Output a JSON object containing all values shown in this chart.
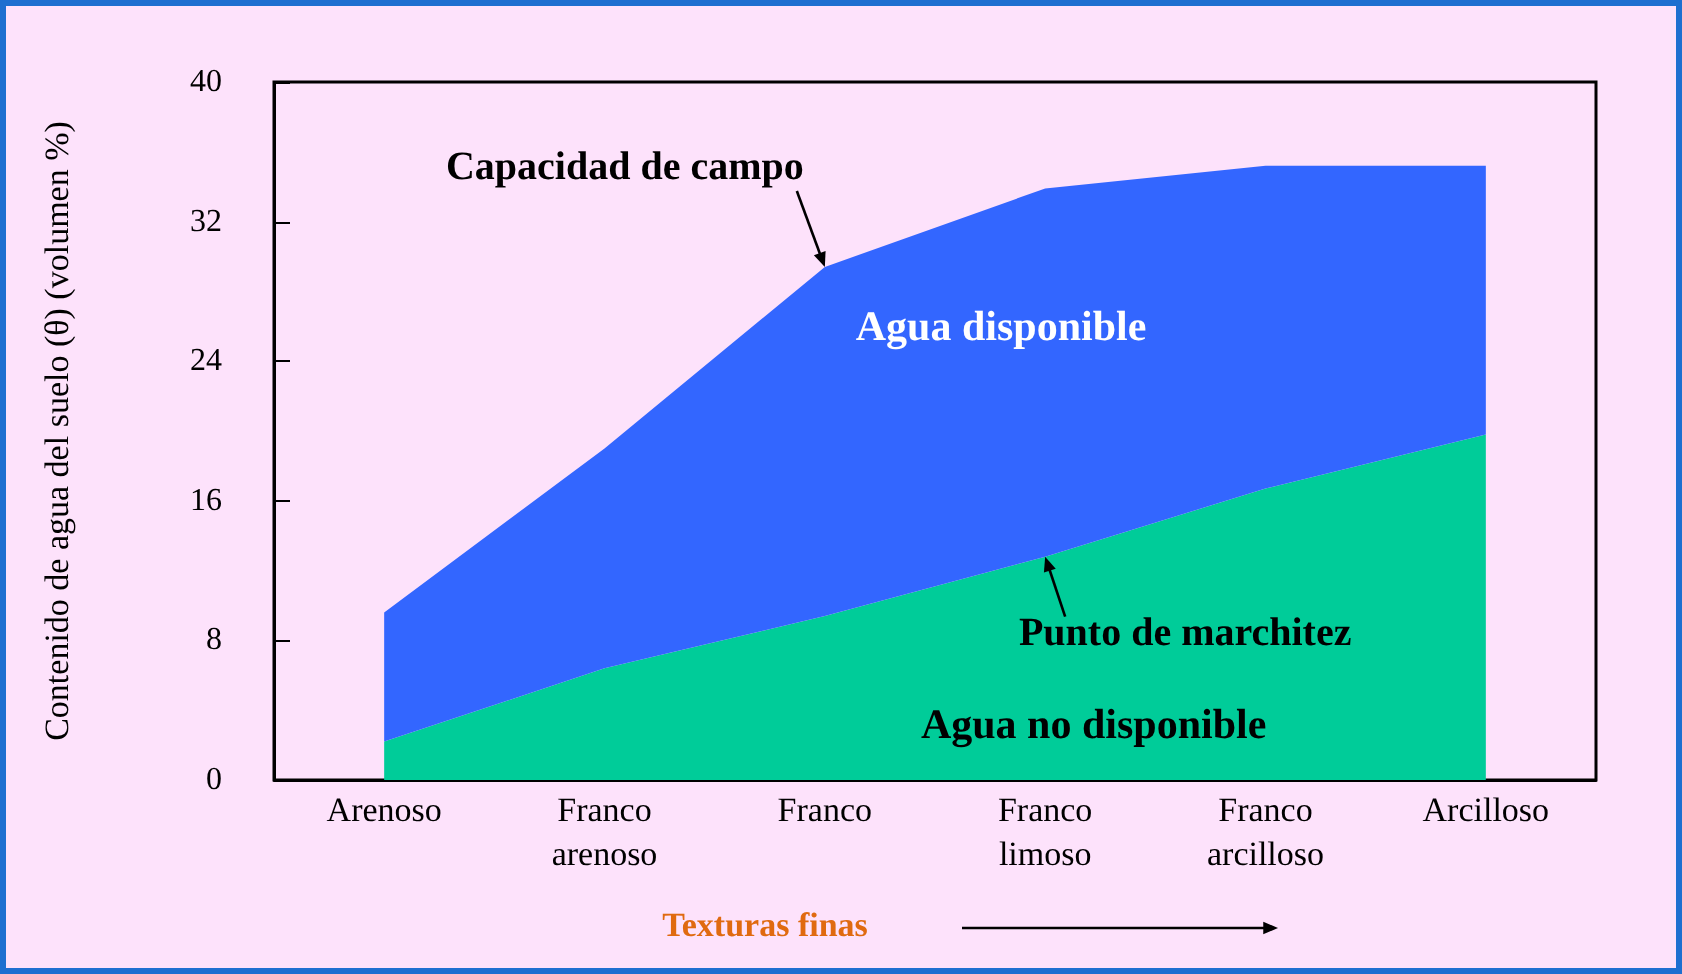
{
  "chart_data": {
    "type": "area",
    "stacked": true,
    "xlabel": "Texturas finas",
    "ylabel": "Contenido de agua del suelo (θ) (volumen %)",
    "categories": [
      "Arenoso",
      "Franco\narenoso",
      "Franco",
      "Franco\nlimoso",
      "Franco\narcilloso",
      "Arcilloso"
    ],
    "series": [
      {
        "name": "Agua no disponible",
        "color": "#00cc99",
        "values": [
          2.2,
          6.4,
          9.4,
          12.8,
          16.7,
          19.8
        ]
      },
      {
        "name": "Agua disponible",
        "color": "#3366ff",
        "values": [
          7.4,
          12.6,
          20,
          21.1,
          18.5,
          15.4
        ]
      }
    ],
    "ylim": [
      0,
      40
    ],
    "yticks": [
      0,
      8,
      16,
      24,
      32,
      40
    ],
    "grid": false,
    "legend": false,
    "annotations": [
      {
        "text": "Capacidad de campo",
        "x": "Franco",
        "y": 29.4
      },
      {
        "text": "Punto de marchitez",
        "x": "Franco\nlimoso",
        "y": 12.8
      }
    ]
  }
}
